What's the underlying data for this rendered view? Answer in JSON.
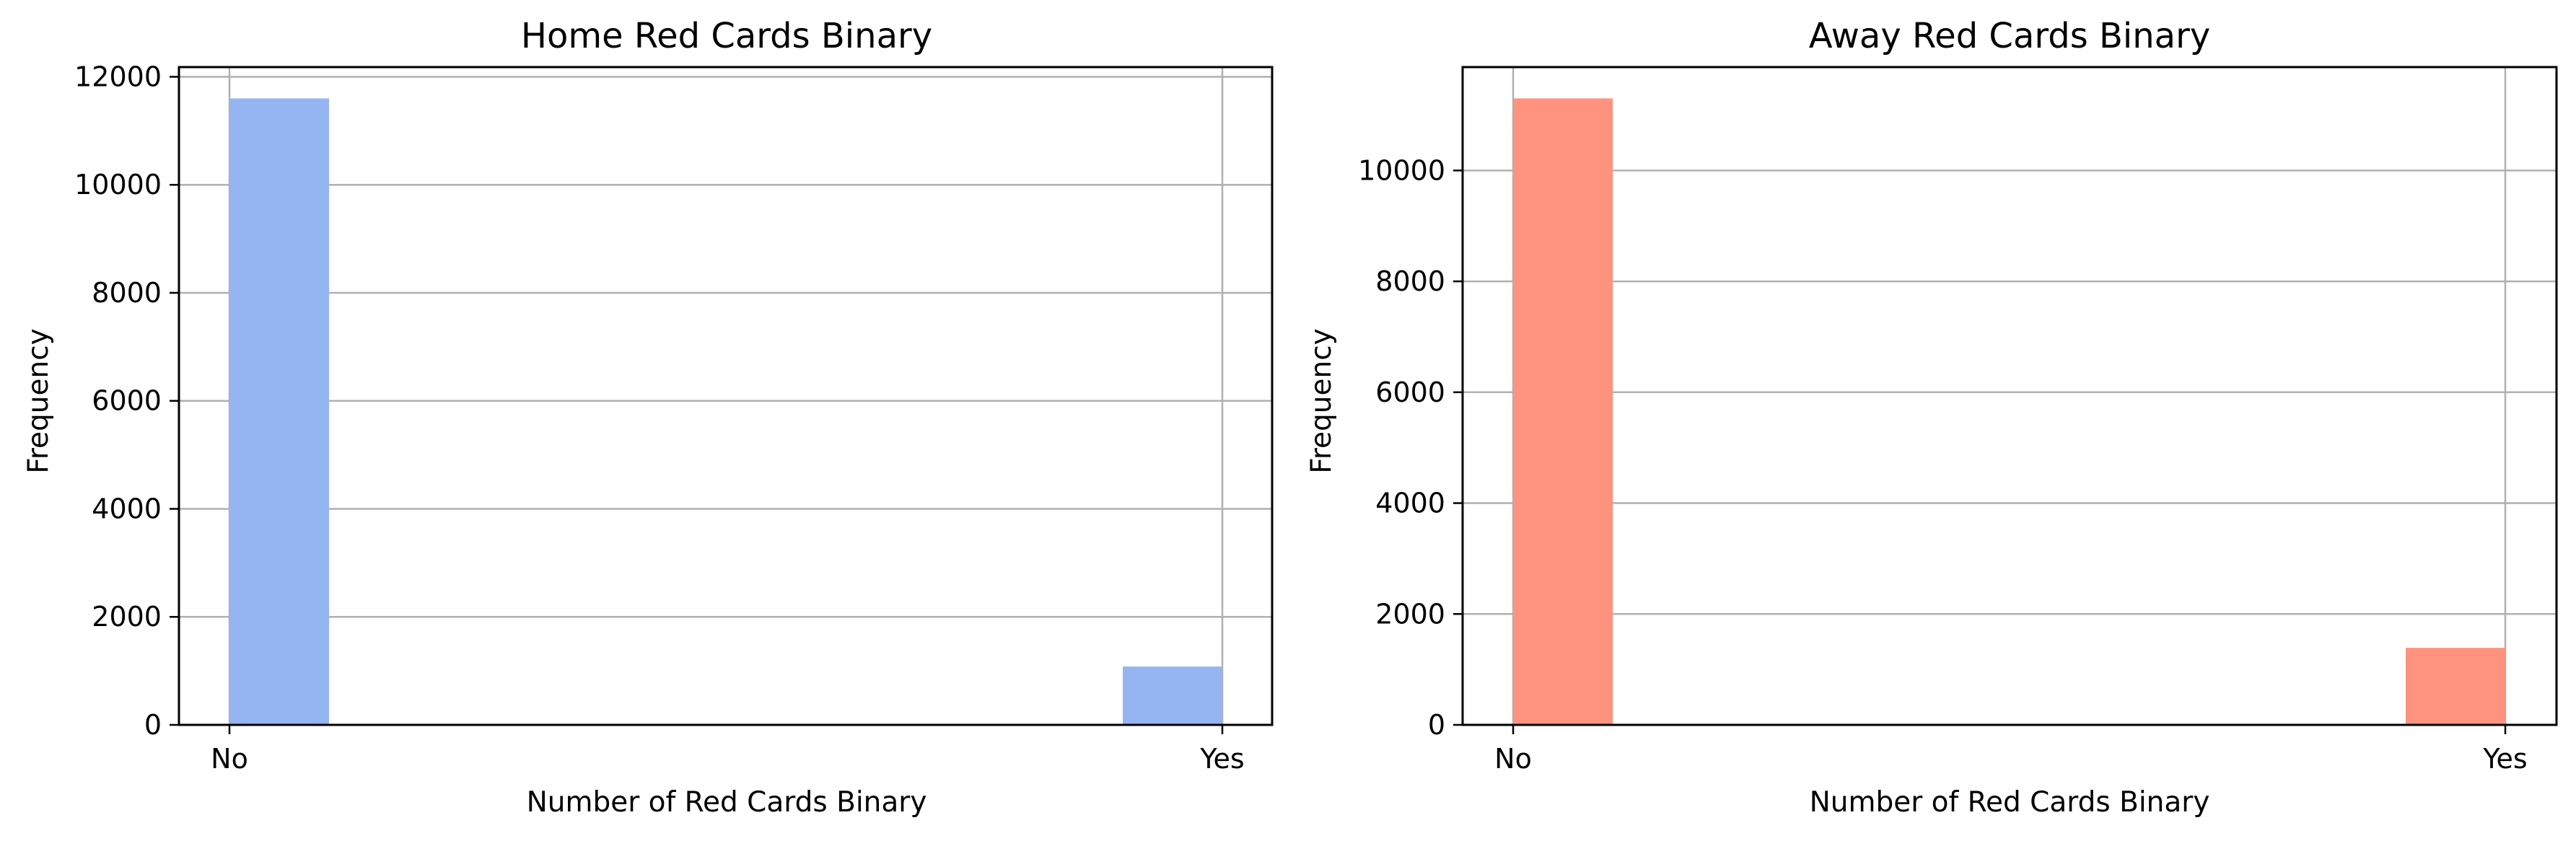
{
  "chart_data": [
    {
      "type": "bar",
      "title": "Home Red Cards Binary",
      "xlabel": "Number of Red Cards Binary",
      "ylabel": "Frequency",
      "categories": [
        "No",
        "Yes"
      ],
      "values": [
        11600,
        1080
      ],
      "yticks": [
        0,
        2000,
        4000,
        6000,
        8000,
        10000,
        12000
      ],
      "ytick_labels": [
        "0",
        "2000",
        "4000",
        "6000",
        "8000",
        "10000",
        "12000"
      ],
      "ylim": [
        0,
        12180
      ],
      "color": "#94b4f2",
      "grid": true
    },
    {
      "type": "bar",
      "title": "Away Red Cards Binary",
      "xlabel": "Number of Red Cards Binary",
      "ylabel": "Frequency",
      "categories": [
        "No",
        "Yes"
      ],
      "values": [
        11300,
        1390
      ],
      "yticks": [
        0,
        2000,
        4000,
        6000,
        8000,
        10000
      ],
      "ytick_labels": [
        "0",
        "2000",
        "4000",
        "6000",
        "8000",
        "10000"
      ],
      "ylim": [
        0,
        11865
      ],
      "color": "#ff937e",
      "grid": true
    }
  ]
}
